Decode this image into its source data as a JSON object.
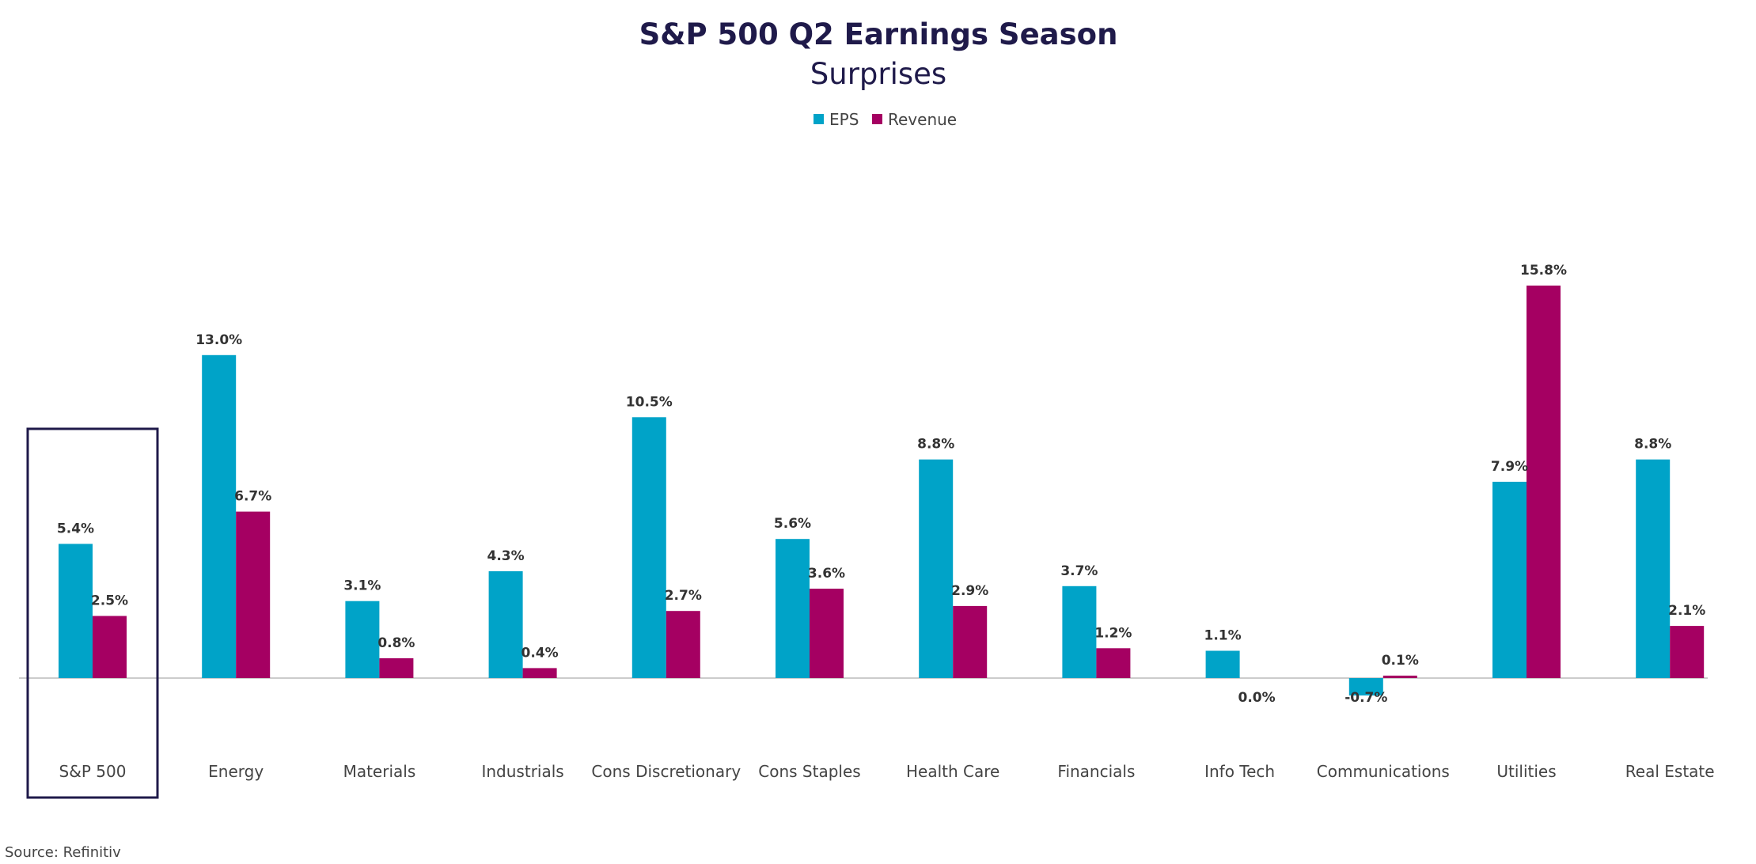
{
  "chart_data": {
    "type": "bar",
    "title": "S&P 500 Q2 Earnings Season",
    "subtitle": "Surprises",
    "categories": [
      "S&P 500",
      "Energy",
      "Materials",
      "Industrials",
      "Cons Discretionary",
      "Cons Staples",
      "Health Care",
      "Financials",
      "Info Tech",
      "Communications",
      "Utilities",
      "Real Estate"
    ],
    "series": [
      {
        "name": "EPS",
        "color": "#00a3c8",
        "values": [
          5.4,
          13.0,
          3.1,
          4.3,
          10.5,
          5.6,
          8.8,
          3.7,
          1.1,
          -0.7,
          7.9,
          8.8
        ],
        "labels": [
          "5.4%",
          "13.0%",
          "3.1%",
          "4.3%",
          "10.5%",
          "5.6%",
          "8.8%",
          "3.7%",
          "1.1%",
          "-0.7%",
          "7.9%",
          "8.8%"
        ]
      },
      {
        "name": "Revenue",
        "color": "#a50062",
        "values": [
          2.5,
          6.7,
          0.8,
          0.4,
          2.7,
          3.6,
          2.9,
          1.2,
          0.0,
          0.1,
          15.8,
          2.1
        ],
        "labels": [
          "2.5%",
          "6.7%",
          "0.8%",
          "0.4%",
          "2.7%",
          "3.6%",
          "2.9%",
          "1.2%",
          "0.0%",
          "0.1%",
          "15.8%",
          "2.1%"
        ]
      }
    ],
    "legend_position": "top-center",
    "highlighted_category": "S&P 500",
    "highlight_color": "#1f1a4a",
    "grid": false,
    "source": "Source: Refinitiv"
  }
}
